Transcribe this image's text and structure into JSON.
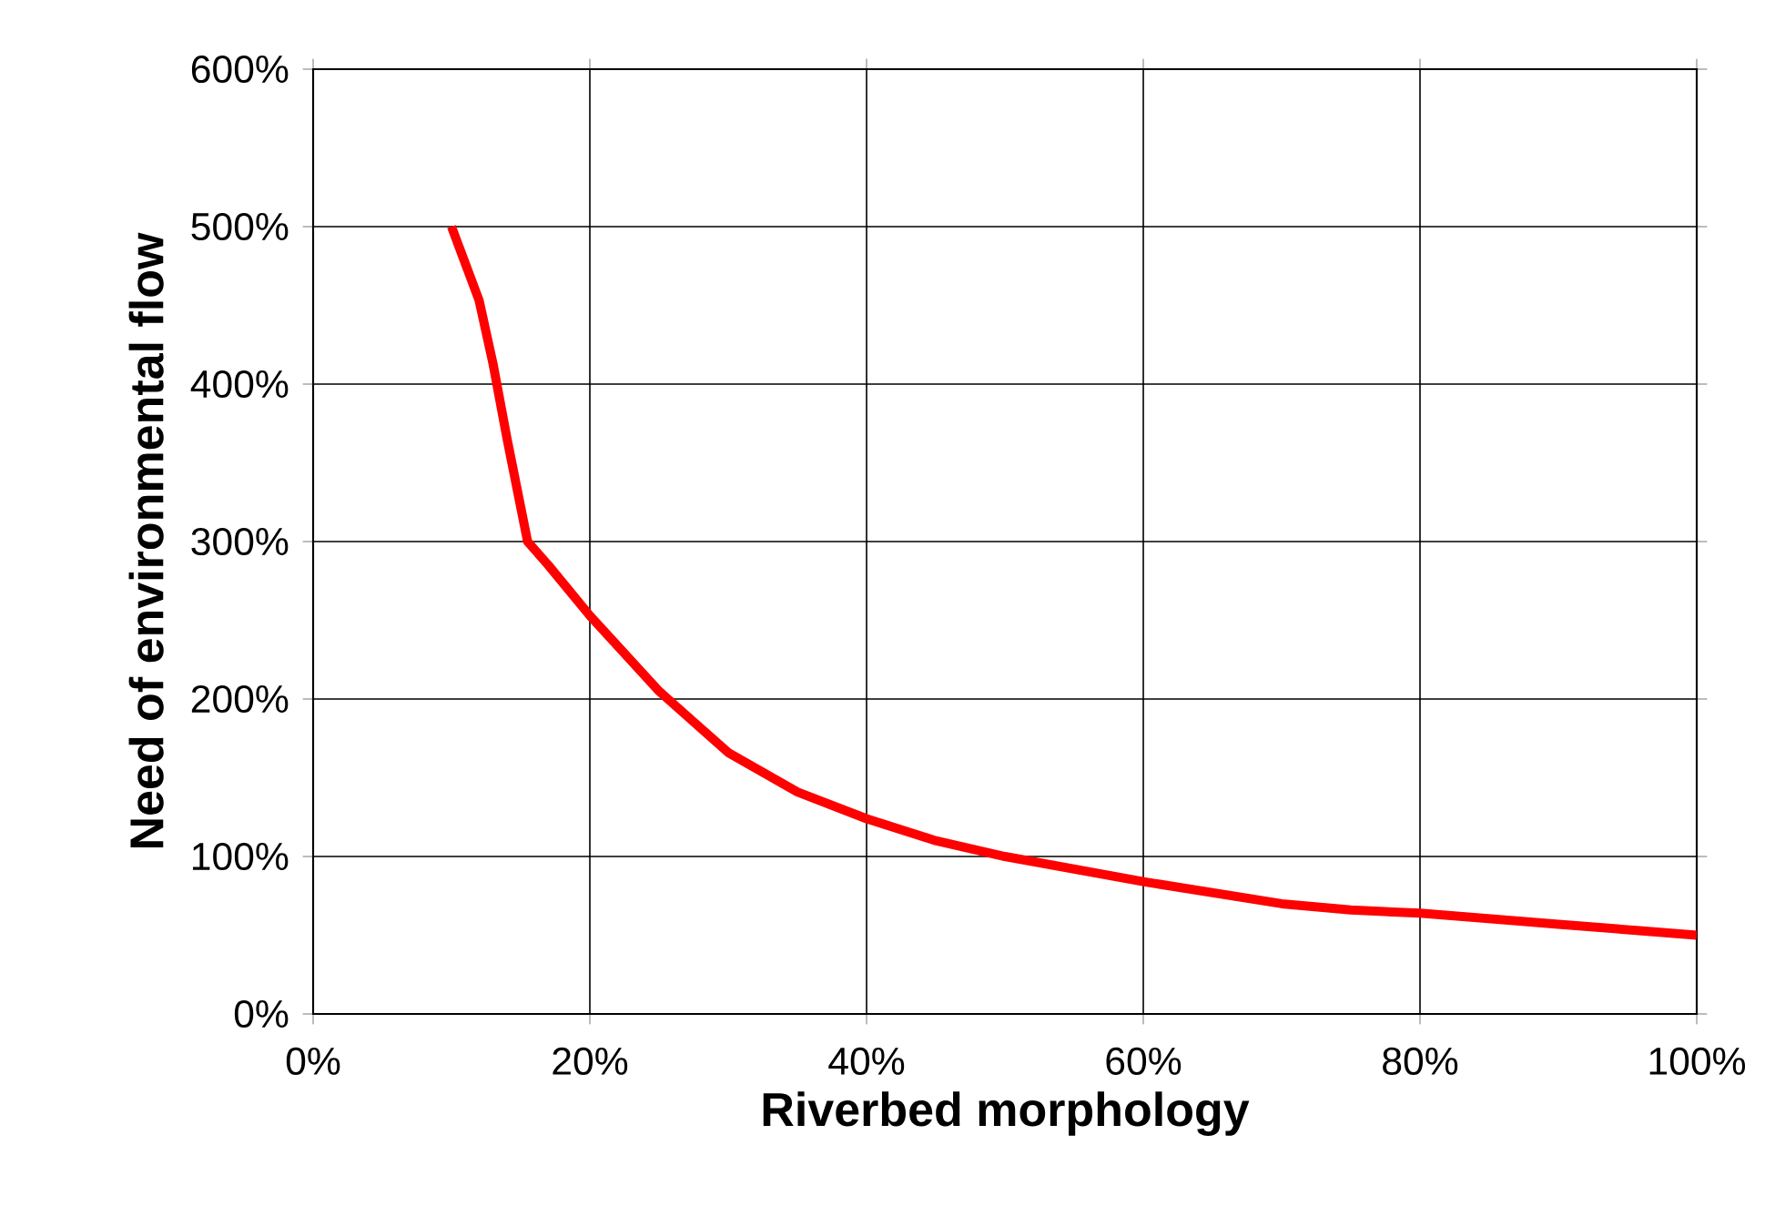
{
  "chart_data": {
    "type": "line",
    "xlabel": "Riverbed morphology",
    "ylabel": "Need of environmental flow",
    "x": [
      10,
      12,
      13,
      14,
      15.5,
      17,
      20,
      25,
      30,
      35,
      40,
      45,
      50,
      60,
      70,
      75,
      80,
      90,
      100
    ],
    "series": [
      {
        "color": "#ff0000",
        "values": [
          500,
          453,
          413,
          366,
          300,
          285,
          253,
          205,
          166,
          141,
          124,
          110,
          100,
          84,
          70,
          66,
          64,
          57,
          50
        ]
      }
    ],
    "xlim": [
      0,
      100
    ],
    "ylim": [
      0,
      600
    ],
    "xticks": [
      {
        "value": 0,
        "label": "0%"
      },
      {
        "value": 20,
        "label": "20%"
      },
      {
        "value": 40,
        "label": "40%"
      },
      {
        "value": 60,
        "label": "60%"
      },
      {
        "value": 80,
        "label": "80%"
      },
      {
        "value": 100,
        "label": "100%"
      }
    ],
    "yticks": [
      {
        "value": 0,
        "label": "0%"
      },
      {
        "value": 100,
        "label": "100%"
      },
      {
        "value": 200,
        "label": "200%"
      },
      {
        "value": 300,
        "label": "300%"
      },
      {
        "value": 400,
        "label": "400%"
      },
      {
        "value": 500,
        "label": "500%"
      },
      {
        "value": 600,
        "label": "600%"
      }
    ],
    "grid": true,
    "marker": "none",
    "line_style": "solid"
  }
}
